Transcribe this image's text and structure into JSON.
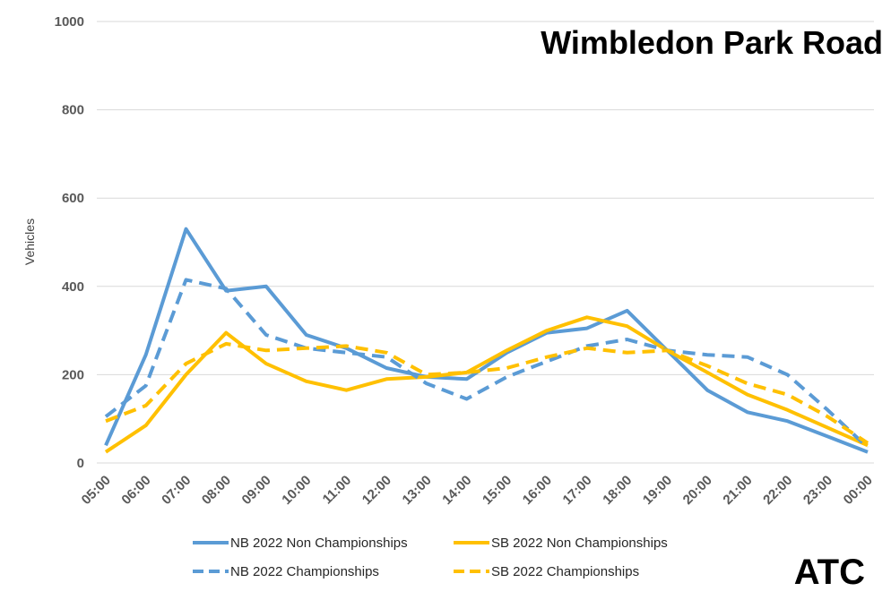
{
  "chart_data": {
    "type": "line",
    "title": "Wimbledon Park Road",
    "ylabel": "Vehicles",
    "xlabel": "",
    "ylim": [
      0,
      1000
    ],
    "yticks": [
      0,
      200,
      400,
      600,
      800,
      1000
    ],
    "grid": true,
    "legend_position": "bottom",
    "categories": [
      "05:00",
      "06:00",
      "07:00",
      "08:00",
      "09:00",
      "10:00",
      "11:00",
      "12:00",
      "13:00",
      "14:00",
      "15:00",
      "16:00",
      "17:00",
      "18:00",
      "19:00",
      "20:00",
      "21:00",
      "22:00",
      "23:00",
      "00:00"
    ],
    "series": [
      {
        "name": "NB 2022 Non Championships",
        "color": "#5b9bd5",
        "dashed": false,
        "values": [
          40,
          245,
          530,
          390,
          400,
          290,
          260,
          215,
          195,
          190,
          250,
          295,
          305,
          345,
          255,
          165,
          115,
          95,
          60,
          25
        ]
      },
      {
        "name": "SB 2022 Non Championships",
        "color": "#ffc000",
        "dashed": false,
        "values": [
          25,
          85,
          200,
          295,
          225,
          185,
          165,
          190,
          195,
          205,
          255,
          300,
          330,
          310,
          255,
          205,
          155,
          120,
          80,
          40
        ]
      },
      {
        "name": "NB 2022 Championships",
        "color": "#5b9bd5",
        "dashed": true,
        "values": [
          105,
          175,
          415,
          395,
          290,
          260,
          250,
          240,
          180,
          145,
          195,
          230,
          265,
          280,
          255,
          245,
          240,
          200,
          120,
          35
        ]
      },
      {
        "name": "SB 2022 Championships",
        "color": "#ffc000",
        "dashed": true,
        "values": [
          95,
          130,
          225,
          270,
          255,
          260,
          265,
          250,
          200,
          205,
          215,
          240,
          260,
          250,
          255,
          220,
          180,
          155,
          105,
          45
        ]
      }
    ]
  },
  "stamp": "ATC"
}
